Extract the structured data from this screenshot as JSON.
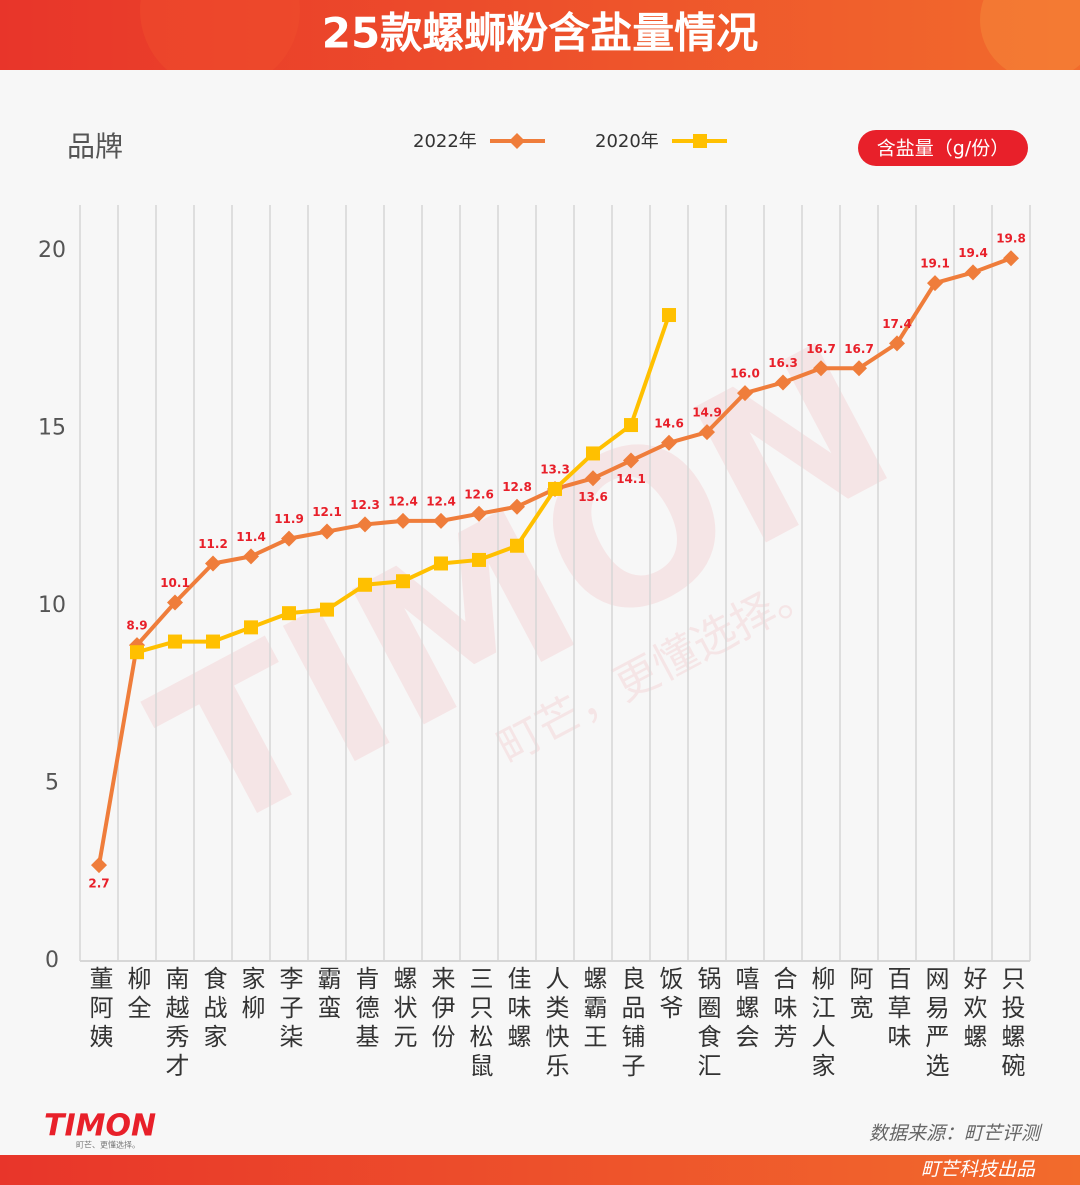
{
  "header": {
    "title": "25款螺蛳粉含盐量情况"
  },
  "chart_data": {
    "type": "line",
    "x_label": "品牌",
    "y_label": "含盐量（g/份）",
    "categories": [
      "董阿姨",
      "柳全",
      "南越秀才",
      "食战家",
      "家柳",
      "李子柒",
      "霸蛮",
      "肯德基",
      "螺状元",
      "来伊份",
      "三只松鼠",
      "佳味螺",
      "人类快乐",
      "螺霸王",
      "良品铺子",
      "饭爷",
      "锅圈食汇",
      "嘻螺会",
      "合味芳",
      "柳江人家",
      "阿宽",
      "百草味",
      "网易严选",
      "好欢螺",
      "只投螺碗"
    ],
    "series": [
      {
        "name": "2022年",
        "color": "#ef7d3b",
        "marker": "diamond",
        "values": [
          2.7,
          8.9,
          10.1,
          11.2,
          11.4,
          11.9,
          12.1,
          12.3,
          12.4,
          12.4,
          12.6,
          12.8,
          13.3,
          13.6,
          14.1,
          14.6,
          14.9,
          16.0,
          16.3,
          16.7,
          16.7,
          17.4,
          19.1,
          19.4,
          19.8
        ],
        "value_labels": [
          "2.7",
          "8.9",
          "10.1",
          "11.2",
          "11.4",
          "11.9",
          "12.1",
          "12.3",
          "12.4",
          "12.4",
          "12.6",
          "12.8",
          "13.3",
          "13.6",
          "14.1",
          "14.6",
          "14.9",
          "16.0",
          "16.3",
          "16.7",
          "16.7",
          "17.4",
          "19.1",
          "19.4",
          "19.8"
        ]
      },
      {
        "name": "2020年",
        "color": "#ffc000",
        "marker": "square",
        "values": [
          null,
          8.7,
          9.0,
          9.0,
          9.4,
          9.8,
          9.9,
          10.6,
          10.7,
          11.2,
          11.3,
          11.7,
          13.3,
          14.3,
          15.1,
          18.2,
          null,
          null,
          null,
          null,
          null,
          null,
          null,
          null,
          null
        ]
      }
    ],
    "ylim": [
      0,
      21.3
    ],
    "yticks": [
      0,
      5,
      10,
      15,
      20
    ],
    "grid": "x"
  },
  "watermark": {
    "logo": "TIMON",
    "slogan": "町芒，更懂选择。"
  },
  "footer": {
    "logo": "TIMON",
    "logo_slogan": "町芒、更懂选择。",
    "source": "数据来源：町芒评测",
    "credit": "町芒科技出品"
  }
}
